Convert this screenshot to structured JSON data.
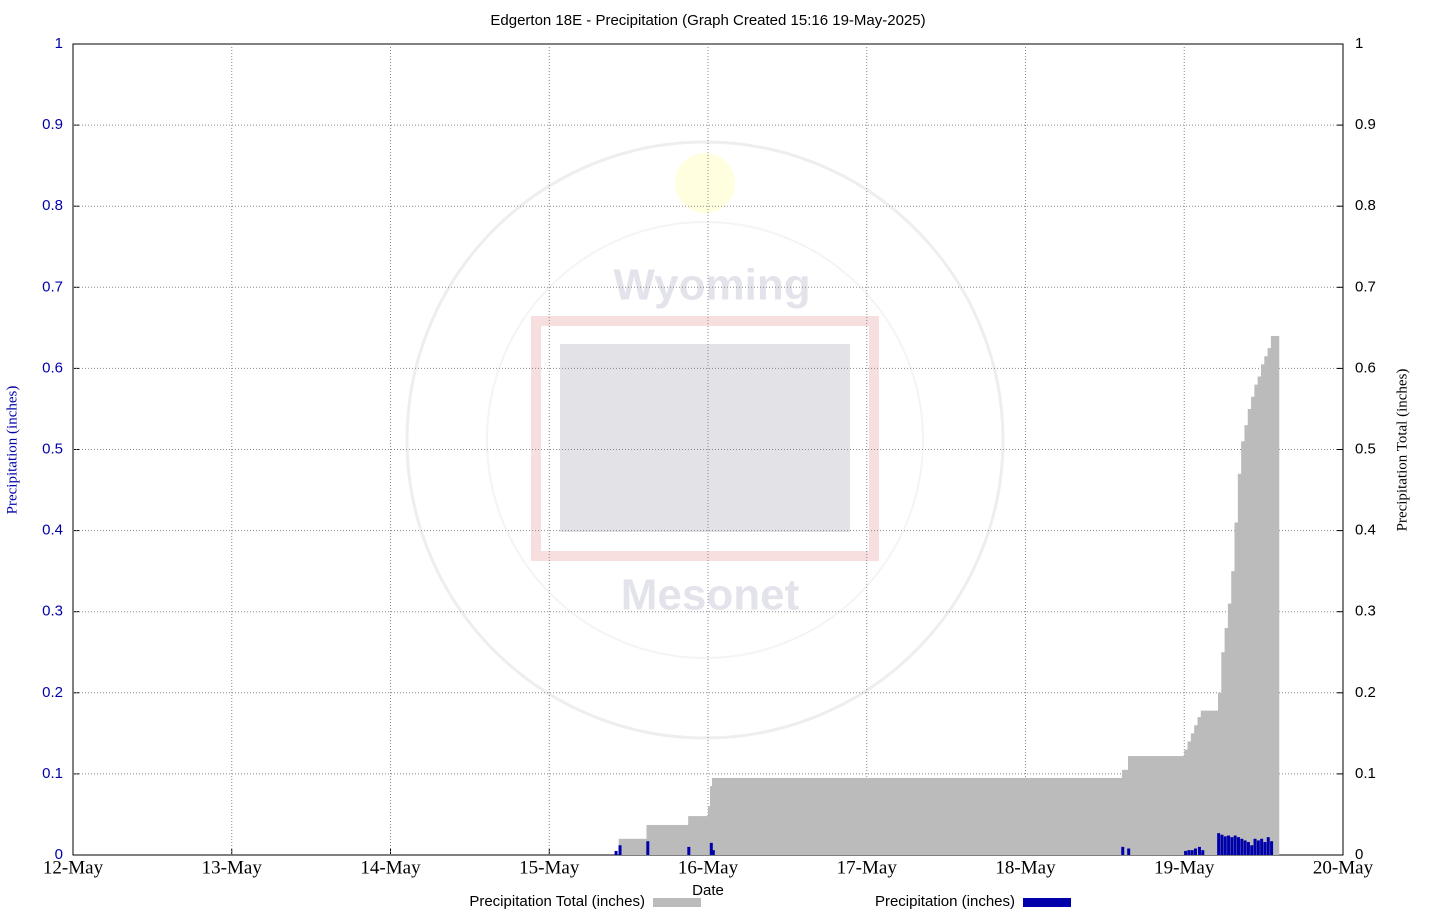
{
  "chart_data": {
    "type": "step-bar",
    "title": "Edgerton 18E - Precipitation (Graph Created 15:16 19-May-2025)",
    "xlabel": "Date",
    "ylabel": "Precipitation (inches)",
    "y2label": "Precipitation Total (inches)",
    "watermark": [
      "Wyoming",
      "Mesonet"
    ],
    "xlim": [
      0,
      192
    ],
    "xticks": [
      {
        "value": 0,
        "label": "12-May"
      },
      {
        "value": 24,
        "label": "13-May"
      },
      {
        "value": 48,
        "label": "14-May"
      },
      {
        "value": 72,
        "label": "15-May"
      },
      {
        "value": 96,
        "label": "16-May"
      },
      {
        "value": 120,
        "label": "17-May"
      },
      {
        "value": 144,
        "label": "18-May"
      },
      {
        "value": 168,
        "label": "19-May"
      },
      {
        "value": 192,
        "label": "20-May"
      }
    ],
    "ylim": [
      0,
      1
    ],
    "yticks": [
      0,
      0.1,
      0.2,
      0.3,
      0.4,
      0.5,
      0.6,
      0.7,
      0.8,
      0.9,
      1
    ],
    "y2lim": [
      0,
      1
    ],
    "y2ticks": [
      0,
      0.1,
      0.2,
      0.3,
      0.4,
      0.5,
      0.6,
      0.7,
      0.8,
      0.9,
      1
    ],
    "grid": true,
    "series": [
      {
        "name": "Precipitation Total (inches)",
        "color": "#bbbbbb",
        "axis": "y2",
        "style": "step",
        "x": [
          82.5,
          86.7,
          93,
          96,
          96.3,
          96.6,
          158.6,
          159.5,
          168,
          168.5,
          169,
          169.5,
          170,
          170.5,
          173.1,
          173.6,
          174.1,
          174.6,
          175.1,
          175.6,
          176.1,
          176.6,
          177.1,
          177.6,
          178.1,
          178.6,
          179.1,
          179.6,
          180.1,
          180.6,
          181.1
        ],
        "values": [
          0.02,
          0.037,
          0.048,
          0.06,
          0.085,
          0.095,
          0.105,
          0.122,
          0.13,
          0.14,
          0.15,
          0.16,
          0.17,
          0.178,
          0.2,
          0.25,
          0.28,
          0.31,
          0.35,
          0.41,
          0.47,
          0.51,
          0.53,
          0.55,
          0.565,
          0.58,
          0.59,
          0.605,
          0.615,
          0.625,
          0.64
        ]
      },
      {
        "name": "Precipitation (inches)",
        "color": "#0000aa",
        "axis": "y",
        "style": "bar",
        "x": [
          82.1,
          82.7,
          86.9,
          93.1,
          96.5,
          96.8,
          158.7,
          159.6,
          168.2,
          168.7,
          169.2,
          169.7,
          170.3,
          170.8,
          173.2,
          173.7,
          174.2,
          174.7,
          175.2,
          175.7,
          176.2,
          176.7,
          177.2,
          177.7,
          178.2,
          178.7,
          179.2,
          179.7,
          180.2,
          180.7,
          181.2
        ],
        "values": [
          0.005,
          0.012,
          0.017,
          0.01,
          0.015,
          0.006,
          0.01,
          0.008,
          0.005,
          0.006,
          0.006,
          0.008,
          0.01,
          0.006,
          0.027,
          0.025,
          0.023,
          0.024,
          0.022,
          0.024,
          0.022,
          0.02,
          0.018,
          0.016,
          0.012,
          0.02,
          0.018,
          0.02,
          0.016,
          0.022,
          0.017
        ]
      }
    ]
  }
}
